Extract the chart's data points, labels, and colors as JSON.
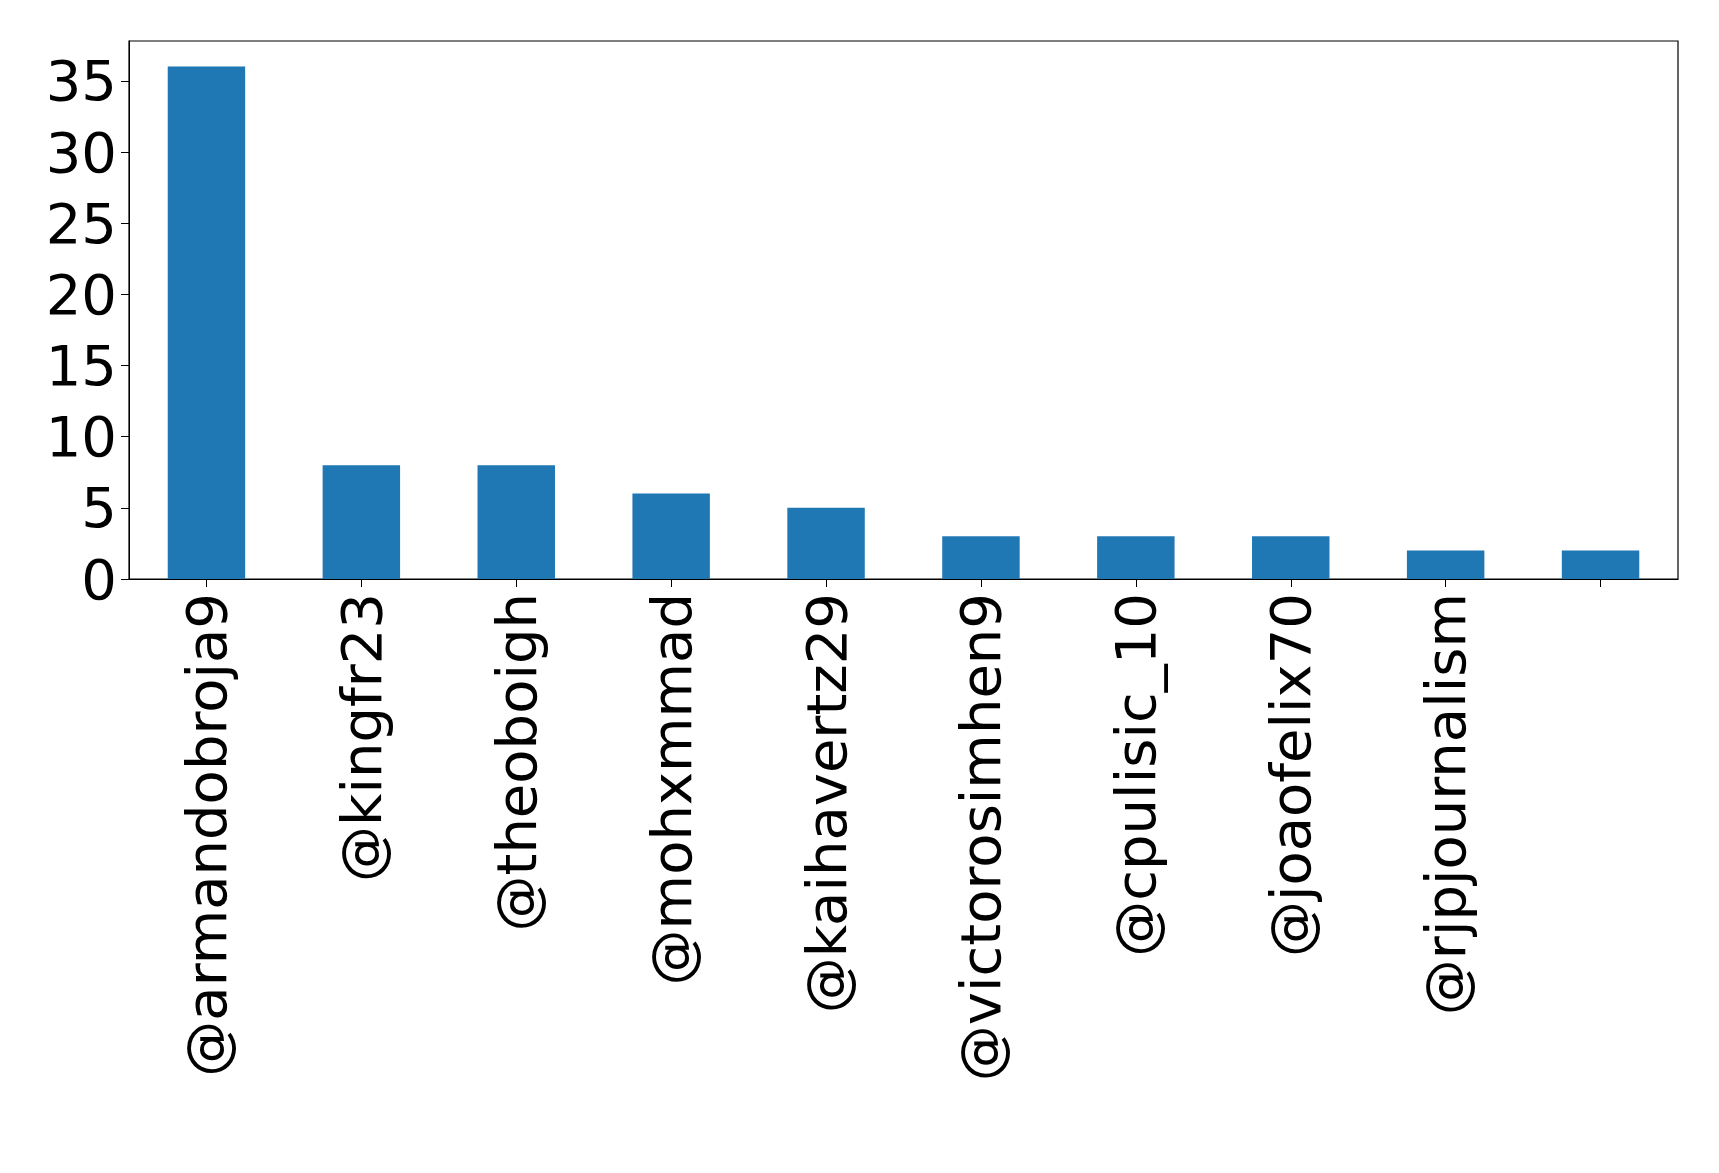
{
  "chart_data": {
    "type": "bar",
    "categories": [
      "@armandobroja9",
      "@kingfr23",
      "@theoboigh",
      "@mohxmmad",
      "@kaihavertz29",
      "@victorosimhen9",
      "@cpulisic_10",
      "@joaofelix70",
      "@rjpjournalism",
      null
    ],
    "values": [
      36,
      8,
      8,
      6,
      5,
      3,
      3,
      3,
      2,
      2
    ],
    "color": "#1f77b4",
    "ylim": [
      0,
      37.8
    ],
    "yticks": [
      0,
      5,
      10,
      15,
      20,
      25,
      30,
      35
    ],
    "grid": false
  }
}
